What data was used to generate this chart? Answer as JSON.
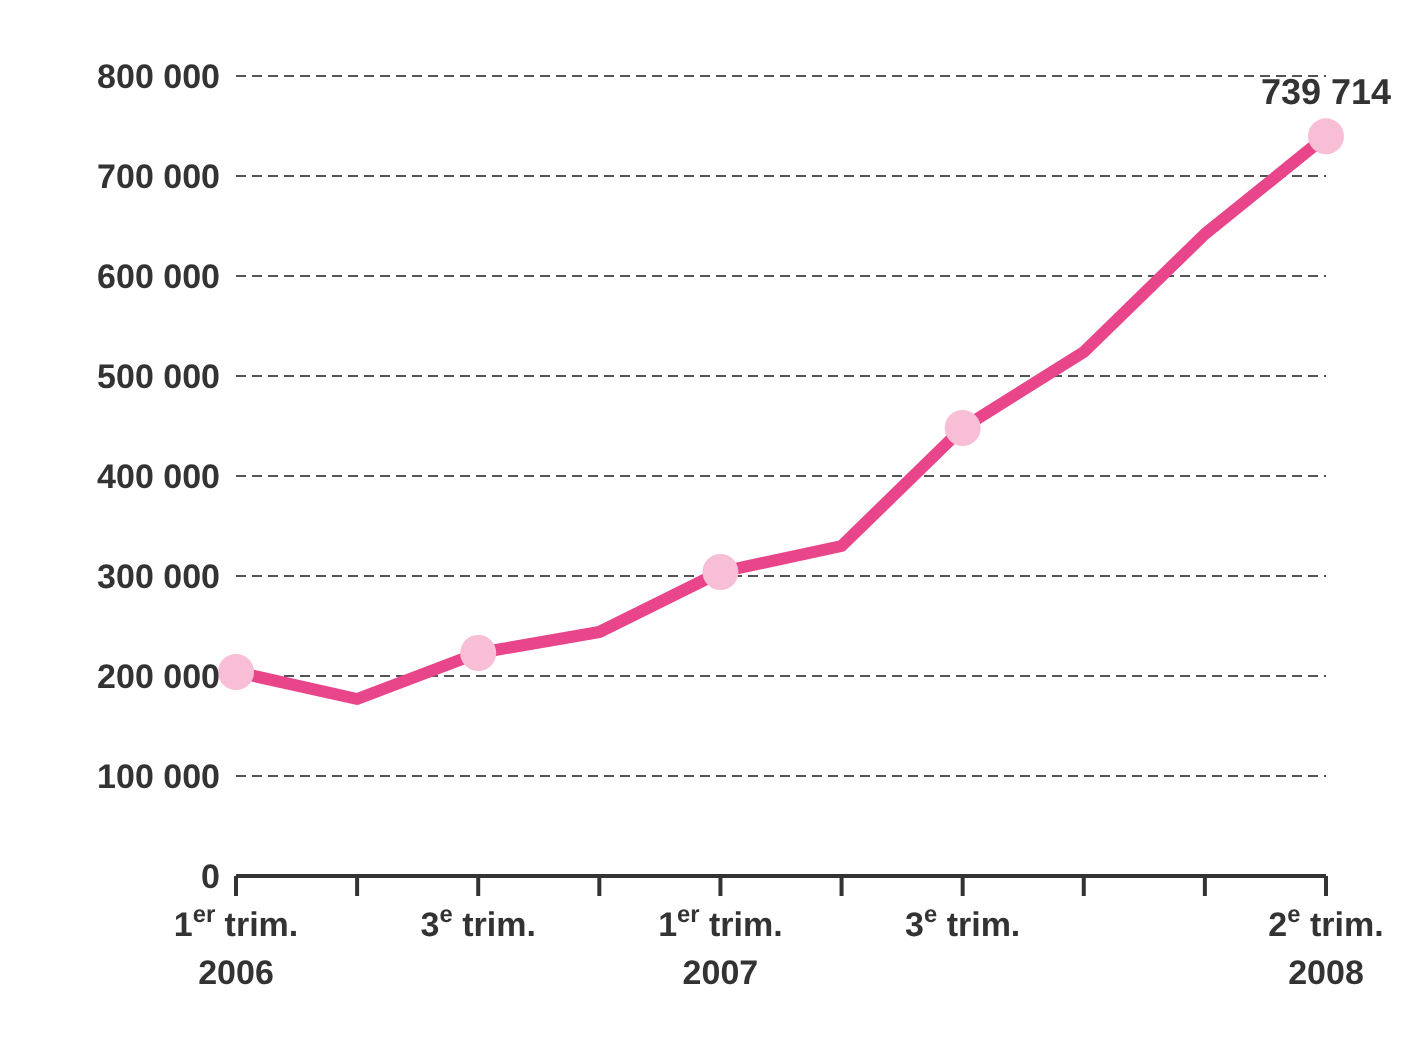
{
  "chart_data": {
    "type": "line",
    "categories": [
      "1$^{er}$ trim.\n2006",
      null,
      "3$^{e}$ trim.",
      null,
      "1$^{er}$ trim.\n2007",
      null,
      "3$^{e}$ trim.",
      null,
      null,
      "2$^{e}$ trim.\n2008"
    ],
    "series": [
      {
        "color": "#e8458b",
        "values": [
          204000,
          177000,
          223000,
          244000,
          304000,
          330000,
          448000,
          524000,
          642000,
          739714
        ],
        "value_labels": [
          null,
          null,
          null,
          null,
          null,
          null,
          null,
          null,
          null,
          "739 714"
        ]
      }
    ],
    "ylim": [
      0,
      800000
    ],
    "yticks": [
      {
        "value": 0,
        "label": "0"
      },
      {
        "value": 100000,
        "label": "100 000"
      },
      {
        "value": 200000,
        "label": "200 000"
      },
      {
        "value": 300000,
        "label": "300 000"
      },
      {
        "value": 400000,
        "label": "400 000"
      },
      {
        "value": 500000,
        "label": "500 000"
      },
      {
        "value": 600000,
        "label": "600 000"
      },
      {
        "value": 700000,
        "label": "700 000"
      },
      {
        "value": 800000,
        "label": "800 000"
      }
    ],
    "grid": "y",
    "marker": "circle",
    "line_style": "solid"
  }
}
